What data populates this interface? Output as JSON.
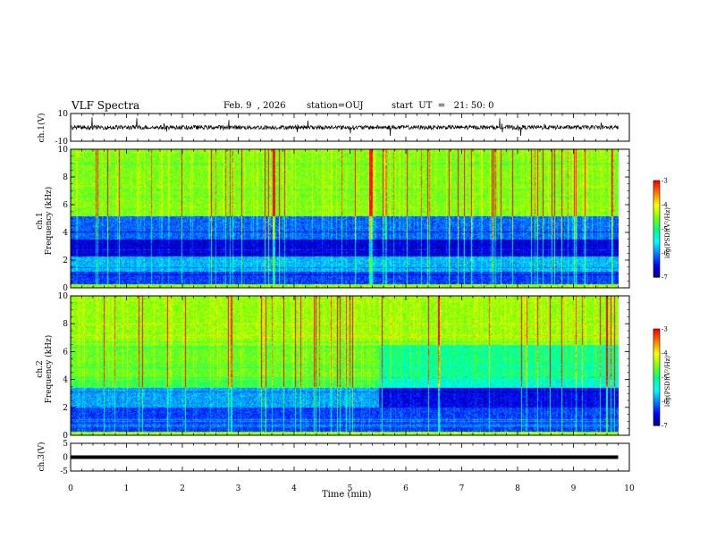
{
  "header": {
    "title": "VLF Spectra",
    "date": "Feb. 9  , 2026",
    "station": "station=OUJ",
    "start": "start  UT  =   21: 50: 0"
  },
  "panels": {
    "ch1_waveform": {
      "ylabel": "ch.1(V)",
      "yticks": [
        "10",
        "-10"
      ]
    },
    "spec1": {
      "ylabel": "ch.1\nFrequency (kHz)",
      "yticks": [
        "10",
        "8",
        "6",
        "4",
        "2",
        "0"
      ]
    },
    "spec2": {
      "ylabel": "ch.2\nFrequency (kHz)",
      "yticks": [
        "10",
        "8",
        "6",
        "4",
        "2",
        "0"
      ]
    },
    "ch3_waveform": {
      "ylabel": "ch.3(V)",
      "yticks": [
        "5",
        "0",
        "-5"
      ]
    },
    "colorbar": {
      "label": "log(PSD)(V²/Hz)",
      "ticks": [
        "-3",
        "-4",
        "-5",
        "-6",
        "-7"
      ]
    }
  },
  "xaxis": {
    "label": "Time  (min)",
    "ticks": [
      "0",
      "1",
      "2",
      "3",
      "4",
      "5",
      "6",
      "7",
      "8",
      "9",
      "10"
    ]
  },
  "colors": {
    "colormap": [
      "#00007f",
      "#0000ff",
      "#0080ff",
      "#00ffff",
      "#00ff80",
      "#80ff00",
      "#ffff00",
      "#ff8000",
      "#ff0000"
    ]
  },
  "chart_data": {
    "type": "heatmap",
    "xlabel": "Time  (min)",
    "xlim": [
      0,
      10
    ],
    "data_extent_min": 9.8,
    "spectrograms": [
      {
        "name": "ch.1",
        "ylabel": "Frequency (kHz)",
        "ylim": [
          0,
          10
        ],
        "zlim": [
          -7,
          -3
        ],
        "zlabel": "log(PSD)(V²/Hz)"
      },
      {
        "name": "ch.2",
        "ylabel": "Frequency (kHz)",
        "ylim": [
          0,
          10
        ],
        "zlim": [
          -7,
          -3
        ],
        "zlabel": "log(PSD)(V²/Hz)"
      }
    ],
    "waveforms": [
      {
        "name": "ch.1(V)",
        "ylim": [
          -10,
          10
        ],
        "level": 0
      },
      {
        "name": "ch.3(V)",
        "ylim": [
          -5,
          5
        ],
        "level": 0
      }
    ]
  }
}
